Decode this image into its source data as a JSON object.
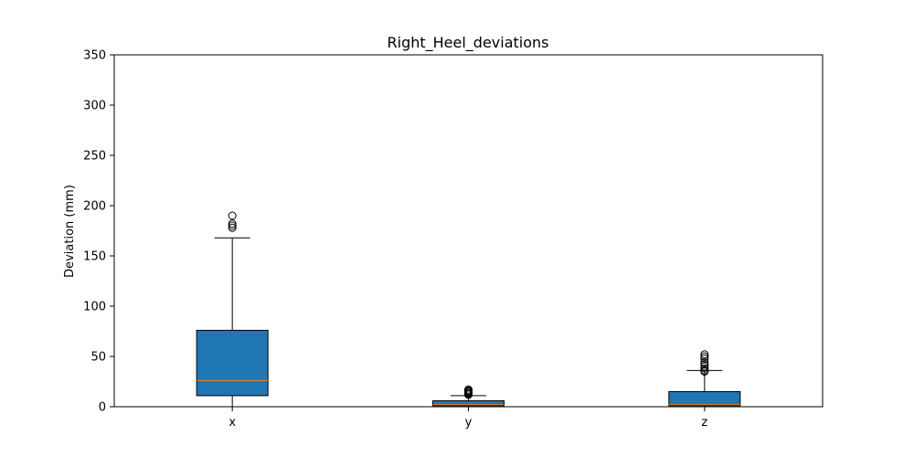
{
  "chart_data": {
    "type": "box",
    "title": "Right_Heel_deviations",
    "xlabel": "",
    "ylabel": "Deviation (mm)",
    "ylim": [
      0,
      350
    ],
    "yticks": [
      0,
      50,
      100,
      150,
      200,
      250,
      300,
      350
    ],
    "grid": false,
    "categories": [
      "x",
      "y",
      "z"
    ],
    "boxes": [
      {
        "category": "x",
        "whisker_low": 0,
        "q1": 11,
        "median": 26,
        "q3": 76,
        "whisker_high": 168,
        "outliers": [
          178,
          180,
          182,
          190
        ]
      },
      {
        "category": "y",
        "whisker_low": 0,
        "q1": 1,
        "median": 2,
        "q3": 6,
        "whisker_high": 11,
        "outliers": [
          12,
          13,
          14,
          15,
          16,
          17
        ]
      },
      {
        "category": "z",
        "whisker_low": 0,
        "q1": 1,
        "median": 2,
        "q3": 15,
        "whisker_high": 36,
        "outliers": [
          35,
          36,
          38,
          40,
          42,
          44,
          48,
          50,
          52
        ]
      }
    ],
    "colors": {
      "box_fill": "#1f77b4",
      "median": "#ff7f0e",
      "line": "#000000"
    }
  }
}
